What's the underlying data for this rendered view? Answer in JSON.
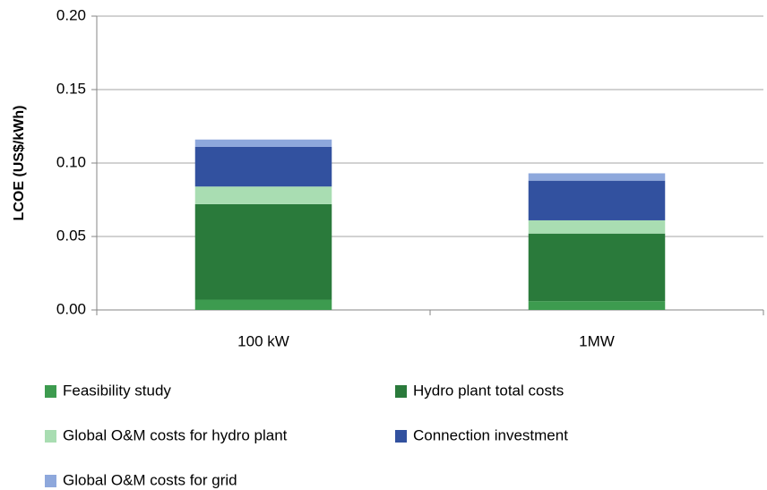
{
  "chart_data": {
    "type": "stacked_bar",
    "ylabel": "LCOE (US$/kWh)",
    "categories": [
      "100 kW",
      "1MW"
    ],
    "series": [
      {
        "name": "Feasibility study",
        "color": "#3d9b4f",
        "values": [
          0.007,
          0.006
        ]
      },
      {
        "name": "Hydro plant total costs",
        "color": "#2a7a3b",
        "values": [
          0.065,
          0.046
        ]
      },
      {
        "name": "Global O&M costs for hydro plant",
        "color": "#a9ddb2",
        "values": [
          0.012,
          0.009
        ]
      },
      {
        "name": "Connection investment",
        "color": "#32519f",
        "values": [
          0.027,
          0.027
        ]
      },
      {
        "name": "Global O&M costs for grid",
        "color": "#8ea8dc",
        "values": [
          0.005,
          0.005
        ]
      }
    ],
    "ylim": [
      0,
      0.2
    ],
    "yticks": [
      {
        "value": 0,
        "label": "0.00"
      },
      {
        "value": 0.05,
        "label": "0.05"
      },
      {
        "value": 0.1,
        "label": "0.10"
      },
      {
        "value": 0.15,
        "label": "0.15"
      },
      {
        "value": 0.2,
        "label": "0.20"
      }
    ],
    "grid": true
  }
}
